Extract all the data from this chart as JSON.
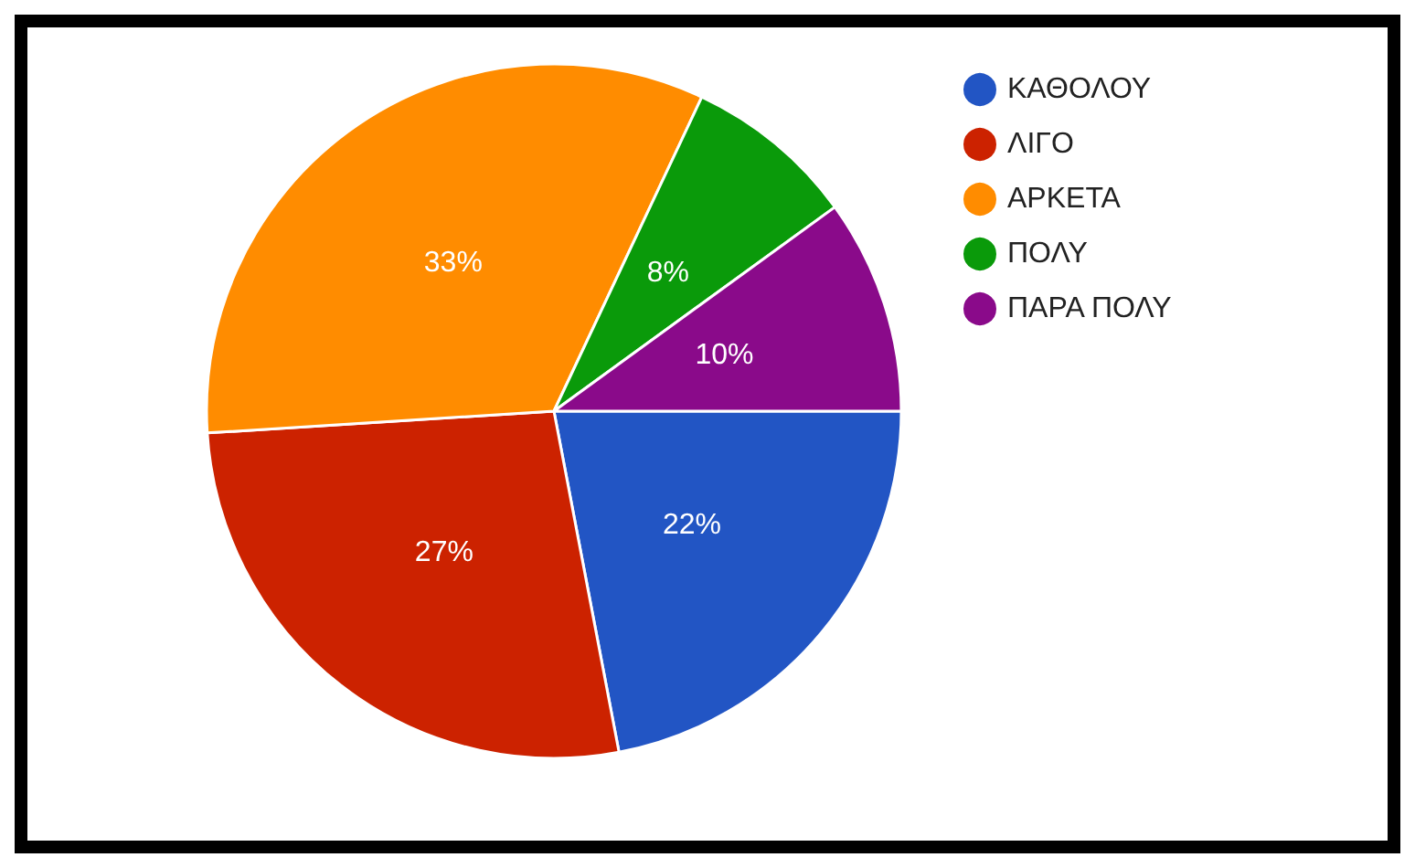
{
  "chart_data": {
    "type": "pie",
    "categories": [
      "ΚΑΘΟΛΟΥ",
      "ΛΙΓΟ",
      "ΑΡΚΕΤΑ",
      "ΠΟΛΥ",
      "ΠΑΡΑ ΠΟΛΥ"
    ],
    "values": [
      22,
      27,
      33,
      8,
      10
    ],
    "value_labels": [
      "22%",
      "27%",
      "33%",
      "8%",
      "10%"
    ],
    "colors": [
      "#2255c4",
      "#cc2200",
      "#ff8c00",
      "#0a9a0a",
      "#8a0a8a"
    ],
    "legend": "top right"
  }
}
